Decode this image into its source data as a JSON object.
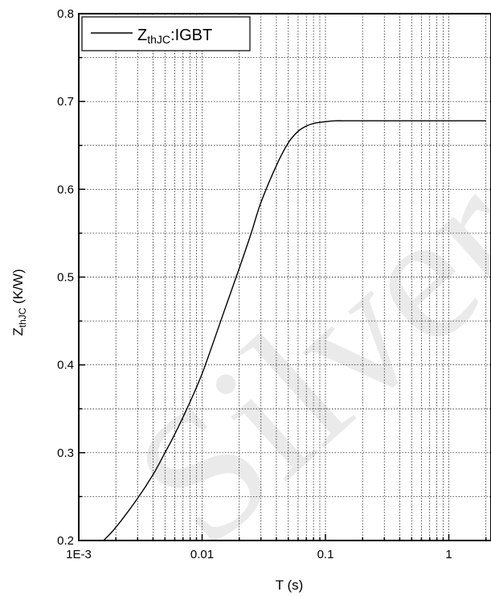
{
  "chart_data": {
    "type": "line",
    "xlabel": "T (s)",
    "ylabel": "ZthJC (K/W)",
    "ylabel_main": "Z",
    "ylabel_sub": "thJC",
    "ylabel_unit": " (K/W)",
    "x_scale": "log",
    "xlim": [
      0.001,
      2
    ],
    "ylim": [
      0.2,
      0.8
    ],
    "grid": true,
    "legend_position": "top-left",
    "x_ticks": [
      0.001,
      0.01,
      0.1,
      1
    ],
    "x_tick_labels": [
      "1E-3",
      "0.01",
      "0.1",
      "1"
    ],
    "y_ticks": [
      0.2,
      0.3,
      0.4,
      0.5,
      0.6,
      0.7,
      0.8
    ],
    "y_tick_labels": [
      "0.2",
      "0.3",
      "0.4",
      "0.5",
      "0.6",
      "0.7",
      "0.8"
    ],
    "series": [
      {
        "name": "ZthJC:IGBT",
        "name_main": "Z",
        "name_sub": "thJC",
        "name_suffix": ":IGBT",
        "color": "#000000",
        "x": [
          0.00159,
          0.002,
          0.003,
          0.004,
          0.005,
          0.006,
          0.008,
          0.01,
          0.012,
          0.015,
          0.02,
          0.025,
          0.03,
          0.04,
          0.05,
          0.06,
          0.07,
          0.08,
          0.1,
          0.12,
          0.15,
          0.2,
          0.3,
          0.5,
          1,
          2
        ],
        "y": [
          0.2,
          0.215,
          0.248,
          0.275,
          0.3,
          0.321,
          0.358,
          0.39,
          0.421,
          0.46,
          0.51,
          0.55,
          0.585,
          0.627,
          0.653,
          0.666,
          0.672,
          0.675,
          0.677,
          0.678,
          0.678,
          0.678,
          0.678,
          0.678,
          0.678,
          0.678
        ]
      }
    ]
  },
  "watermark": {
    "text": "Silver",
    "color": "#d9d9d9"
  }
}
